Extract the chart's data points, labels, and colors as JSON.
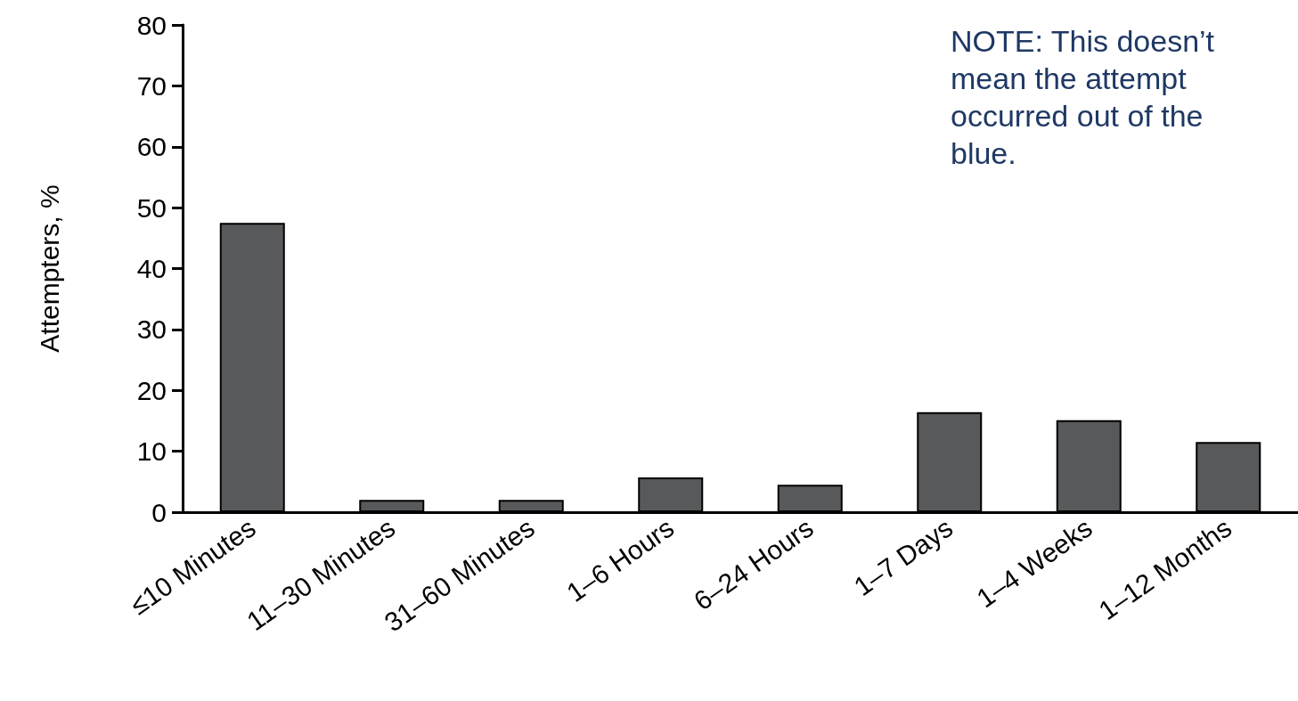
{
  "chart_data": {
    "type": "bar",
    "ylabel": "Attempters, %",
    "categories": [
      "≤10 Minutes",
      "11–30 Minutes",
      "31–60 Minutes",
      "1–6 Hours",
      "6–24 Hours",
      "1–7 Days",
      "1–4 Weeks",
      "1–12 Months"
    ],
    "values": [
      47.5,
      2,
      2,
      5.7,
      4.5,
      16.4,
      15.1,
      11.5
    ],
    "color": "#58595b",
    "ylim": [
      0,
      80
    ],
    "yticks": [
      0,
      10,
      20,
      30,
      40,
      50,
      60,
      70,
      80
    ],
    "grid": false,
    "annotations": [
      "NOTE: This doesn’t mean the attempt occurred out of the blue."
    ]
  }
}
